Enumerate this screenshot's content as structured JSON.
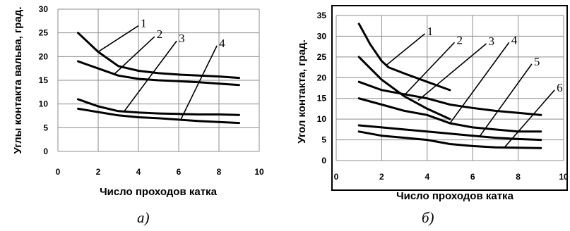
{
  "chart_data": [
    {
      "type": "line",
      "caption": "а)",
      "xlabel": "Число проходов катка",
      "ylabel": "Углы контакта вальва, град.",
      "xlim": [
        0,
        10
      ],
      "ylim": [
        0,
        30
      ],
      "xticks": [
        0,
        2,
        4,
        6,
        8,
        10
      ],
      "yticks": [
        0,
        5,
        10,
        15,
        20,
        25,
        30
      ],
      "grid": true,
      "border": false,
      "series": [
        {
          "name": "1",
          "x": [
            1,
            2,
            3,
            4,
            5,
            6,
            7,
            8,
            9
          ],
          "values": [
            25,
            21,
            18,
            17,
            16.5,
            16.2,
            16,
            15.8,
            15.5
          ]
        },
        {
          "name": "2",
          "x": [
            1,
            2,
            3,
            4,
            5,
            6,
            7,
            8,
            9
          ],
          "values": [
            19,
            17.5,
            16,
            15.3,
            15,
            14.8,
            14.6,
            14.3,
            14
          ]
        },
        {
          "name": "3",
          "x": [
            1,
            2,
            3,
            4,
            5,
            6,
            7,
            8,
            9
          ],
          "values": [
            11,
            9.5,
            8.5,
            8.2,
            8,
            7.9,
            7.8,
            7.8,
            7.7
          ]
        },
        {
          "name": "4",
          "x": [
            1,
            2,
            3,
            4,
            5,
            6,
            7,
            8,
            9
          ],
          "values": [
            9,
            8.3,
            7.6,
            7.2,
            7,
            6.7,
            6.4,
            6.2,
            6
          ]
        }
      ],
      "callouts": [
        {
          "label": "1",
          "from": [
            2.0,
            21.0
          ],
          "to": [
            4.0,
            26.5
          ]
        },
        {
          "label": "2",
          "from": [
            2.8,
            16.3
          ],
          "to": [
            4.8,
            24.2
          ]
        },
        {
          "label": "3",
          "from": [
            3.3,
            8.5
          ],
          "to": [
            5.9,
            23.3
          ]
        },
        {
          "label": "4",
          "from": [
            6.1,
            6.7
          ],
          "to": [
            7.9,
            22.3
          ]
        }
      ]
    },
    {
      "type": "line",
      "caption": "б)",
      "xlabel": "Число проходов катка",
      "ylabel": "Угол контакта, град.",
      "xlim": [
        0,
        10
      ],
      "ylim": [
        0,
        35
      ],
      "xticks": [
        0,
        2,
        4,
        6,
        8,
        10
      ],
      "yticks": [
        0,
        5,
        10,
        15,
        20,
        25,
        30,
        35
      ],
      "grid": true,
      "border": true,
      "series": [
        {
          "name": "1",
          "x": [
            1,
            1.5,
            2,
            2.3,
            3,
            4,
            5
          ],
          "values": [
            33,
            28,
            24,
            22.5,
            21,
            19,
            17
          ]
        },
        {
          "name": "2",
          "x": [
            1,
            2,
            3,
            4,
            5
          ],
          "values": [
            25,
            19.5,
            15.5,
            12.5,
            10
          ]
        },
        {
          "name": "3",
          "x": [
            1,
            2,
            3,
            4,
            5,
            6,
            7,
            8,
            9
          ],
          "values": [
            19,
            17,
            16,
            15,
            13.5,
            12.7,
            12,
            11.5,
            11
          ]
        },
        {
          "name": "4",
          "x": [
            1,
            2,
            3,
            4,
            5,
            6,
            7,
            8,
            9
          ],
          "values": [
            15,
            13.5,
            12,
            11,
            9,
            8,
            7.5,
            7,
            7
          ]
        },
        {
          "name": "5",
          "x": [
            1,
            2,
            3,
            4,
            5,
            6,
            7,
            8,
            9
          ],
          "values": [
            8.5,
            8,
            7.5,
            7,
            6.5,
            6,
            5.5,
            5.2,
            5
          ]
        },
        {
          "name": "6",
          "x": [
            1,
            2,
            3,
            4,
            5,
            6,
            7,
            8,
            9
          ],
          "values": [
            7,
            6,
            5.5,
            5,
            4,
            3.5,
            3.2,
            3.1,
            3
          ]
        }
      ],
      "callouts": [
        {
          "label": "1",
          "from": [
            2.2,
            23.0
          ],
          "to": [
            3.9,
            30.6
          ]
        },
        {
          "label": "2",
          "from": [
            3.0,
            15.8
          ],
          "to": [
            5.2,
            28.5
          ]
        },
        {
          "label": "3",
          "from": [
            3.6,
            14.5
          ],
          "to": [
            6.6,
            28.2
          ]
        },
        {
          "label": "4",
          "from": [
            5.0,
            9.0
          ],
          "to": [
            7.6,
            28.5
          ]
        },
        {
          "label": "5",
          "from": [
            6.3,
            5.8
          ],
          "to": [
            8.6,
            23.3
          ]
        },
        {
          "label": "6",
          "from": [
            7.4,
            3.2
          ],
          "to": [
            9.6,
            17.0
          ]
        }
      ]
    }
  ]
}
